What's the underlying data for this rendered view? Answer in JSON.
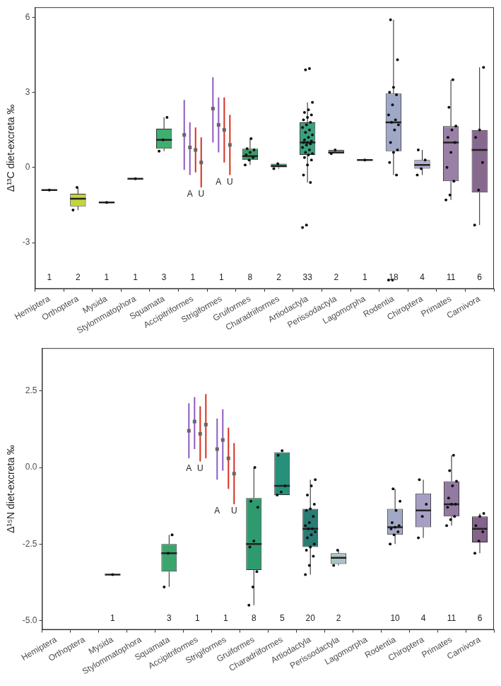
{
  "chart_data": [
    {
      "type": "box",
      "ylabel": "Δ¹³C diet-excreta ‰",
      "categories": [
        "Hemiptera",
        "Orthoptera",
        "Mysida",
        "Stylommatophora",
        "Squamata",
        "Accipitriformes",
        "Strigiformes",
        "Gruiformes",
        "Charadriiformes",
        "Artiodactyla",
        "Perissodactyla",
        "Lagomorpha",
        "Rodentia",
        "Chiroptera",
        "Primates",
        "Carnivora"
      ],
      "ylim": [
        -4.85,
        6.4
      ],
      "yticks": [
        -3,
        0,
        3,
        6
      ],
      "grid": false,
      "colors": [
        "#444444",
        "#c4d53a",
        "#444444",
        "#444444",
        "#3daf6e",
        "#8e5bbf",
        "#8e5bbf",
        "#3a9c6a",
        "#2c8a6c",
        "#3aa17e",
        "#9cb7b3",
        "#444444",
        "#a0a8c8",
        "#b1add0",
        "#9a80a6",
        "#87698f"
      ],
      "n": [
        1,
        2,
        1,
        1,
        3,
        1,
        1,
        8,
        2,
        33,
        2,
        1,
        18,
        4,
        11,
        6
      ],
      "boxes": [
        {
          "low": -0.9,
          "q1": -0.9,
          "median": -0.9,
          "q3": -0.9,
          "high": -0.9
        },
        {
          "low": -1.7,
          "q1": -1.55,
          "median": -1.25,
          "q3": -1.05,
          "high": -0.8
        },
        {
          "low": -1.4,
          "q1": -1.4,
          "median": -1.4,
          "q3": -1.4,
          "high": -1.4
        },
        {
          "low": -0.45,
          "q1": -0.45,
          "median": -0.45,
          "q3": -0.45,
          "high": -0.45
        },
        {
          "low": 0.65,
          "q1": 0.75,
          "median": 1.1,
          "q3": 1.55,
          "high": 2.0
        },
        null,
        null,
        {
          "low": 0.1,
          "q1": 0.3,
          "median": 0.45,
          "q3": 0.75,
          "high": 1.15
        },
        {
          "low": -0.05,
          "q1": 0.0,
          "median": 0.05,
          "q3": 0.15,
          "high": 0.15
        },
        {
          "low": -0.6,
          "q1": 0.5,
          "median": 1.0,
          "q3": 1.8,
          "high": 2.6
        },
        {
          "low": 0.55,
          "q1": 0.55,
          "median": 0.6,
          "q3": 0.7,
          "high": 0.7
        },
        {
          "low": 0.3,
          "q1": 0.3,
          "median": 0.3,
          "q3": 0.3,
          "high": 0.3
        },
        {
          "low": -0.3,
          "q1": 0.65,
          "median": 1.8,
          "q3": 2.95,
          "high": 5.9
        },
        {
          "low": -0.3,
          "q1": -0.05,
          "median": 0.1,
          "q3": 0.3,
          "high": 0.7
        },
        {
          "low": -1.3,
          "q1": -0.55,
          "median": 1.0,
          "q3": 1.65,
          "high": 3.5
        },
        {
          "low": -2.3,
          "q1": -1.0,
          "median": 0.7,
          "q3": 1.5,
          "high": 4.0
        }
      ],
      "points": [
        [
          -0.9
        ],
        [
          -1.7,
          -0.8
        ],
        [
          -1.4
        ],
        [
          -0.45
        ],
        [
          0.65,
          1.1,
          2.0
        ],
        [],
        [],
        [
          0.1,
          0.3,
          0.4,
          0.5,
          0.6,
          0.7,
          0.75,
          1.15
        ],
        [
          -0.05,
          0.15
        ],
        [
          -2.4,
          -2.3,
          -0.6,
          -0.3,
          0.1,
          0.3,
          0.4,
          0.5,
          0.55,
          0.6,
          0.7,
          0.8,
          0.9,
          0.95,
          1.0,
          1.0,
          1.05,
          1.1,
          1.2,
          1.3,
          1.4,
          1.5,
          1.6,
          1.7,
          1.8,
          1.9,
          2.0,
          2.1,
          2.2,
          2.3,
          2.6,
          3.9,
          3.95
        ],
        [
          0.55,
          0.7
        ],
        [
          0.3
        ],
        [
          -4.5,
          -4.5,
          -0.3,
          0.2,
          0.6,
          0.7,
          1.0,
          1.5,
          1.7,
          1.8,
          1.9,
          2.1,
          2.5,
          2.9,
          3.0,
          3.2,
          4.3,
          5.9
        ],
        [
          -0.3,
          -0.05,
          0.3,
          0.7
        ],
        [
          -1.3,
          -1.1,
          -0.55,
          0.0,
          0.6,
          1.0,
          1.2,
          1.5,
          1.65,
          2.4,
          3.5
        ],
        [
          -2.3,
          -0.9,
          0.2,
          1.2,
          1.5,
          4.0
        ]
      ],
      "error_bars": [
        null,
        null,
        null,
        null,
        null,
        [
          {
            "value": 1.3,
            "low": -0.1,
            "high": 2.7,
            "color": "#8e5bbf"
          },
          {
            "value": 0.8,
            "low": -0.3,
            "high": 1.8,
            "color": "#8e5bbf",
            "label": "A"
          },
          {
            "value": 0.7,
            "low": -0.2,
            "high": 1.6,
            "color": "#d7301f"
          },
          {
            "value": 0.2,
            "low": -0.8,
            "high": 1.2,
            "color": "#d7301f",
            "label": "U"
          }
        ],
        [
          {
            "value": 2.35,
            "low": 1.0,
            "high": 3.6,
            "color": "#8e5bbf"
          },
          {
            "value": 1.7,
            "low": 0.6,
            "high": 2.8,
            "color": "#8e5bbf",
            "label": "A"
          },
          {
            "value": 1.5,
            "low": 0.2,
            "high": 2.8,
            "color": "#d7301f"
          },
          {
            "value": 0.9,
            "low": -0.3,
            "high": 2.1,
            "color": "#d7301f",
            "label": "U"
          }
        ],
        null,
        null,
        null,
        null,
        null,
        null,
        null,
        null,
        null
      ]
    },
    {
      "type": "box",
      "ylabel": "Δ¹⁵N diet-excreta ‰",
      "categories": [
        "Hemiptera",
        "Orthoptera",
        "Mysida",
        "Stylommatophora",
        "Squamata",
        "Accipitriformes",
        "Strigiformes",
        "Gruiformes",
        "Charadriiformes",
        "Artiodactyla",
        "Perissodactyla",
        "Lagomorpha",
        "Rodentia",
        "Chiroptera",
        "Primates",
        "Carnivora"
      ],
      "ylim": [
        -5.3,
        3.9
      ],
      "yticks": [
        {
          "value": -5,
          "label": "-5.0"
        },
        -2.5,
        {
          "value": 0,
          "label": "0.0"
        },
        2.5
      ],
      "grid": false,
      "colors": [
        "#444444",
        "#444444",
        "#444444",
        "#444444",
        "#3aa56c",
        "#8e5bbf",
        "#8e5bbf",
        "#2e9b6e",
        "#26907a",
        "#2a7b73",
        "#a9c4c6",
        "#444444",
        "#a1a9c6",
        "#a79fc3",
        "#937aa0",
        "#84638c"
      ],
      "n": [
        null,
        null,
        1,
        null,
        3,
        1,
        1,
        8,
        5,
        20,
        2,
        null,
        10,
        4,
        11,
        6
      ],
      "boxes": [
        null,
        null,
        {
          "low": -3.5,
          "q1": -3.5,
          "median": -3.5,
          "q3": -3.5,
          "high": -3.5
        },
        null,
        {
          "low": -3.9,
          "q1": -3.4,
          "median": -2.8,
          "q3": -2.5,
          "high": -2.2
        },
        null,
        null,
        {
          "low": -4.5,
          "q1": -3.35,
          "median": -2.5,
          "q3": -1.0,
          "high": 0.0
        },
        {
          "low": -0.9,
          "q1": -0.9,
          "median": -0.6,
          "q3": 0.5,
          "high": 0.55
        },
        {
          "low": -3.5,
          "q1": -2.6,
          "median": -2.0,
          "q3": -1.35,
          "high": -0.4
        },
        {
          "low": -3.2,
          "q1": -3.15,
          "median": -2.95,
          "q3": -2.8,
          "high": -2.7
        },
        null,
        {
          "low": -2.5,
          "q1": -2.2,
          "median": -1.95,
          "q3": -1.35,
          "high": -0.7
        },
        {
          "low": -2.3,
          "q1": -1.95,
          "median": -1.4,
          "q3": -0.85,
          "high": -0.4
        },
        {
          "low": -1.9,
          "q1": -1.6,
          "median": -1.2,
          "q3": -0.45,
          "high": 0.4
        },
        {
          "low": -2.8,
          "q1": -2.45,
          "median": -2.0,
          "q3": -1.6,
          "high": -1.5
        }
      ],
      "points": [
        [],
        [],
        [
          -3.5
        ],
        [],
        [
          -3.9,
          -2.8,
          -2.2
        ],
        [],
        [],
        [
          -4.5,
          -3.9,
          -3.4,
          -2.6,
          -2.4,
          -1.3,
          -1.1,
          0.0
        ],
        [
          -0.9,
          -0.8,
          -0.6,
          0.4,
          0.55
        ],
        [
          -3.5,
          -3.2,
          -2.9,
          -2.7,
          -2.6,
          -2.5,
          -2.3,
          -2.2,
          -2.1,
          -2.0,
          -2.0,
          -1.9,
          -1.8,
          -1.6,
          -1.4,
          -1.35,
          -1.2,
          -0.9,
          -0.6,
          -0.4
        ],
        [
          -3.2,
          -2.7
        ],
        [],
        [
          -2.5,
          -2.2,
          -2.1,
          -2.0,
          -1.95,
          -1.9,
          -1.8,
          -1.4,
          -1.1,
          -0.7
        ],
        [
          -2.3,
          -1.6,
          -1.2,
          -0.4
        ],
        [
          -1.9,
          -1.7,
          -1.6,
          -1.3,
          -1.2,
          -1.2,
          -1.0,
          -0.6,
          -0.45,
          -0.1,
          0.4
        ],
        [
          -2.8,
          -2.4,
          -2.1,
          -1.9,
          -1.6,
          -1.5
        ]
      ],
      "error_bars": [
        null,
        null,
        null,
        null,
        null,
        [
          {
            "value": 1.2,
            "low": 0.3,
            "high": 2.1,
            "color": "#8e5bbf",
            "label": "A"
          },
          {
            "value": 1.5,
            "low": 0.6,
            "high": 2.3,
            "color": "#8e5bbf"
          },
          {
            "value": 1.1,
            "low": 0.2,
            "high": 2.0,
            "color": "#d7301f",
            "label": "U"
          },
          {
            "value": 1.4,
            "low": 0.3,
            "high": 2.4,
            "color": "#d7301f"
          }
        ],
        [
          {
            "value": 0.6,
            "low": -0.4,
            "high": 1.6,
            "color": "#8e5bbf",
            "label": "A"
          },
          {
            "value": 0.9,
            "low": -0.1,
            "high": 1.9,
            "color": "#8e5bbf"
          },
          {
            "value": 0.3,
            "low": -0.7,
            "high": 1.3,
            "color": "#d7301f"
          },
          {
            "value": -0.2,
            "low": -1.2,
            "high": 0.8,
            "color": "#d7301f",
            "label": "U"
          }
        ],
        null,
        null,
        null,
        null,
        null,
        null,
        null,
        null,
        null
      ]
    }
  ]
}
